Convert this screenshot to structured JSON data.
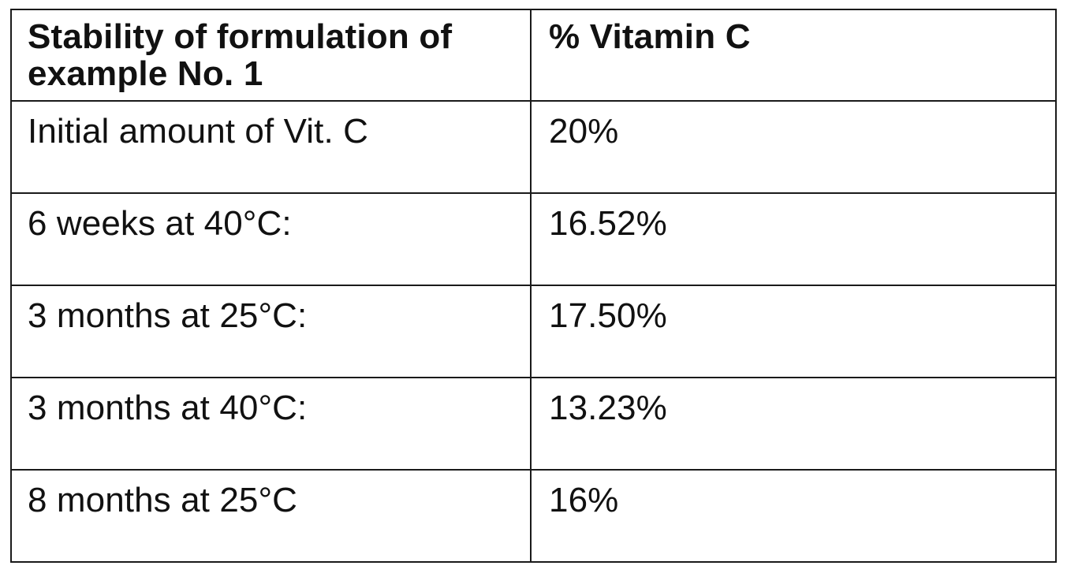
{
  "table": {
    "header": {
      "col1": "Stability of formulation of example No. 1",
      "col2": "% Vitamin C"
    },
    "rows": [
      {
        "condition": "Initial amount of Vit. C",
        "value": "20%"
      },
      {
        "condition": "6 weeks at 40°C:",
        "value": "16.52%"
      },
      {
        "condition": "3 months at 25°C:",
        "value": "17.50%"
      },
      {
        "condition": "3 months at 40°C:",
        "value": "13.23%"
      },
      {
        "condition": "8 months at 25°C",
        "value": "16%"
      }
    ]
  },
  "colors": {
    "text": "#111111",
    "border": "#1a1a1a",
    "background": "#ffffff"
  }
}
